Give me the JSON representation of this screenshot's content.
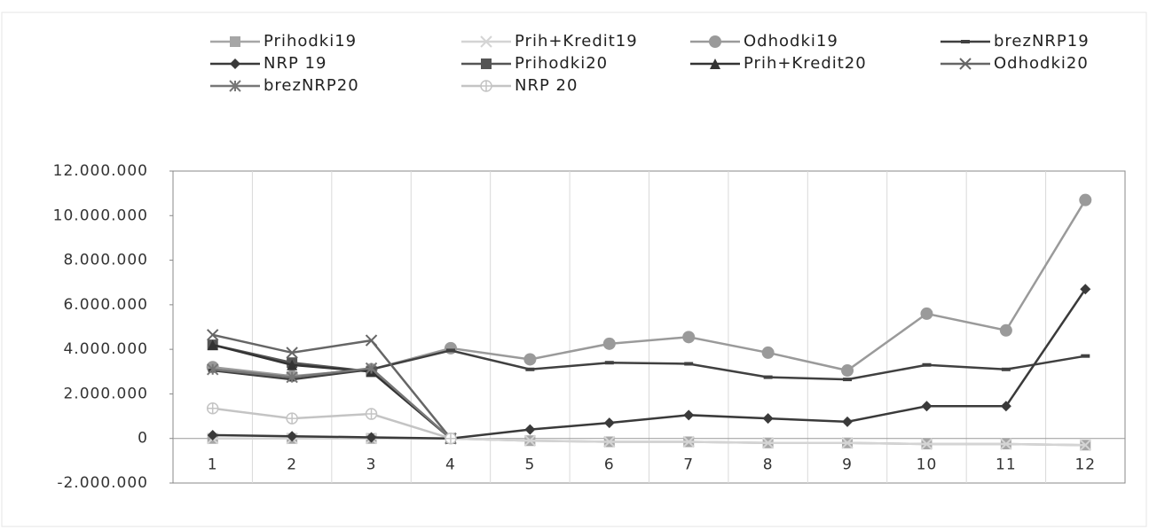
{
  "chart_data": {
    "type": "line",
    "categories": [
      1,
      2,
      3,
      4,
      5,
      6,
      7,
      8,
      9,
      10,
      11,
      12
    ],
    "ylim": [
      -2000000,
      12000000
    ],
    "yticks": [
      {
        "value": -2000000,
        "label": "-2.000.000"
      },
      0,
      {
        "value": 2000000,
        "label": "2.000.000"
      },
      {
        "value": 4000000,
        "label": "4.000.000"
      },
      {
        "value": 6000000,
        "label": "6.000.000"
      },
      {
        "value": 8000000,
        "label": "8.000.000"
      },
      {
        "value": 10000000,
        "label": "10.000.000"
      },
      {
        "value": 12000000,
        "label": "12.000.000"
      }
    ],
    "grid": "vertical",
    "legend": "top",
    "series": [
      {
        "name": "Prihodki19",
        "color": "#a6a6a6",
        "marker": "square",
        "values": [
          0,
          0,
          0,
          0,
          -100000,
          -150000,
          -150000,
          -200000,
          -200000,
          -250000,
          -250000,
          -300000
        ]
      },
      {
        "name": "Prih+Kredit19",
        "color": "#d4d4d4",
        "marker": "x",
        "values": [
          0,
          0,
          0,
          0,
          -100000,
          -150000,
          -150000,
          -200000,
          -200000,
          -250000,
          -250000,
          -300000
        ]
      },
      {
        "name": "Odhodki19",
        "color": "#9a9a9a",
        "marker": "circle",
        "values": [
          3200000,
          2800000,
          3100000,
          4050000,
          3550000,
          4250000,
          4550000,
          3850000,
          3050000,
          5600000,
          4850000,
          10700000
        ]
      },
      {
        "name": "brezNRP19",
        "color": "#404040",
        "marker": "dash",
        "values": [
          3050000,
          2650000,
          3100000,
          3950000,
          3100000,
          3400000,
          3350000,
          2750000,
          2650000,
          3300000,
          3100000,
          3700000
        ]
      },
      {
        "name": "NRP 19",
        "color": "#3a3a3a",
        "marker": "diamond",
        "values": [
          150000,
          100000,
          50000,
          0,
          400000,
          700000,
          1050000,
          900000,
          750000,
          1450000,
          1450000,
          6700000
        ]
      },
      {
        "name": "Prihodki20",
        "color": "#555555",
        "marker": "square",
        "values": [
          4200000,
          3400000,
          3000000,
          0,
          null,
          null,
          null,
          null,
          null,
          null,
          null,
          null
        ]
      },
      {
        "name": "Prih+Kredit20",
        "color": "#333333",
        "marker": "triangle",
        "values": [
          4200000,
          3300000,
          3000000,
          0,
          null,
          null,
          null,
          null,
          null,
          null,
          null,
          null
        ]
      },
      {
        "name": "Odhodki20",
        "color": "#666666",
        "marker": "x",
        "values": [
          4650000,
          3850000,
          4400000,
          0,
          null,
          null,
          null,
          null,
          null,
          null,
          null,
          null
        ]
      },
      {
        "name": "brezNRP20",
        "color": "#777777",
        "marker": "star",
        "values": [
          3100000,
          2750000,
          3150000,
          0,
          null,
          null,
          null,
          null,
          null,
          null,
          null,
          null
        ]
      },
      {
        "name": "NRP 20",
        "color": "#c4c4c4",
        "marker": "circleplus",
        "values": [
          1350000,
          900000,
          1100000,
          0,
          null,
          null,
          null,
          null,
          null,
          null,
          null,
          null
        ]
      }
    ]
  }
}
